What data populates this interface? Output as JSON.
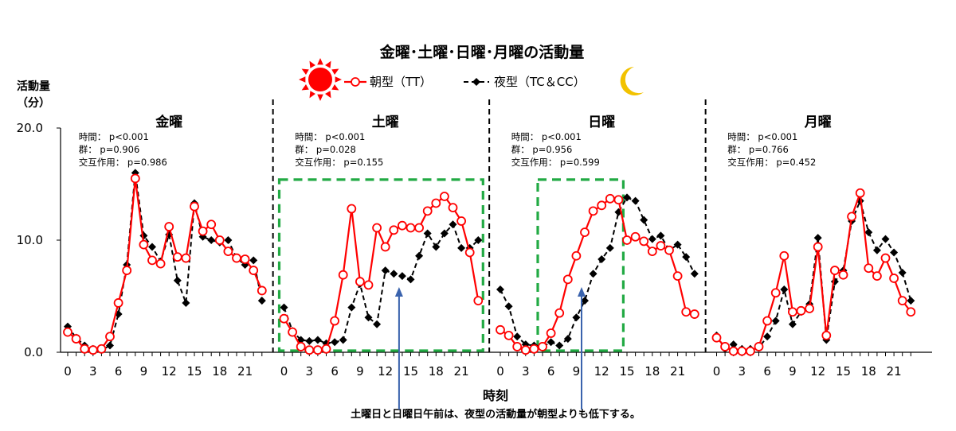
{
  "chart_data": {
    "type": "line",
    "title": "金曜･土曜･日曜･月曜の活動量",
    "ylabel": [
      "活動量",
      "（分）"
    ],
    "xlabel": "時刻",
    "ylim": [
      0,
      20
    ],
    "y_ticks": [
      "0.0",
      "10.0",
      "20.0"
    ],
    "x_ticks": [
      "0",
      "3",
      "6",
      "9",
      "12",
      "15",
      "18",
      "21"
    ],
    "legend": {
      "morning": "朝型（TT）",
      "evening": "夜型（TC＆CC）"
    },
    "colors": {
      "morning": "#ff0000",
      "evening": "#000000",
      "box": "#22aa44",
      "arrow": "#3a63ad",
      "sun": "#ff0000",
      "moon": "#f2c200"
    },
    "icons": [
      "sun-icon",
      "moon-icon"
    ],
    "note": "土曜日と日曜日午前は、夜型の活動量が朝型よりも低下する。",
    "days": [
      {
        "name": "金曜",
        "stats": [
          "時間： p<0.001",
          "群： p=0.906",
          "交互作用： p=0.986"
        ]
      },
      {
        "name": "土曜",
        "stats": [
          "時間： p<0.001",
          "群： p=0.028",
          "交互作用： p=0.155"
        ]
      },
      {
        "name": "日曜",
        "stats": [
          "時間： p<0.001",
          "群： p=0.956",
          "交互作用： p=0.599"
        ]
      },
      {
        "name": "月曜",
        "stats": [
          "時間： p<0.001",
          "群： p=0.766",
          "交互作用： p=0.452"
        ]
      }
    ],
    "series": [
      {
        "name": "朝型（TT）",
        "values": [
          [
            1.8,
            1.2,
            0.3,
            0.2,
            0.3,
            1.4,
            4.4,
            7.3,
            15.5,
            9.6,
            8.2,
            7.9,
            11.2,
            8.5,
            8.4,
            13.0,
            10.8,
            11.4,
            10.0,
            9.0,
            8.4,
            8.3,
            7.3,
            5.5
          ],
          [
            3.0,
            1.8,
            0.5,
            0.2,
            0.2,
            0.3,
            2.8,
            6.9,
            12.8,
            6.3,
            6.0,
            11.1,
            9.4,
            10.9,
            11.3,
            11.1,
            11.1,
            12.6,
            13.3,
            13.9,
            12.9,
            11.7,
            8.9,
            4.6
          ],
          [
            2.0,
            1.5,
            0.5,
            0.2,
            0.3,
            0.5,
            1.7,
            3.5,
            6.5,
            8.6,
            10.7,
            12.6,
            13.1,
            13.7,
            13.6,
            10.0,
            10.3,
            9.9,
            9.0,
            9.5,
            9.1,
            6.8,
            3.6,
            3.4
          ],
          [
            1.3,
            0.5,
            0.1,
            0.1,
            0.1,
            0.5,
            2.8,
            5.3,
            8.6,
            3.6,
            3.7,
            3.9,
            9.4,
            1.5,
            7.3,
            6.9,
            12.1,
            14.2,
            7.5,
            6.8,
            8.4,
            6.6,
            4.6,
            3.6
          ]
        ]
      },
      {
        "name": "夜型（TC＆CC）",
        "values": [
          [
            2.3,
            1.3,
            0.6,
            0.3,
            0.2,
            0.6,
            3.4,
            7.8,
            16.0,
            10.4,
            9.4,
            8.1,
            10.5,
            6.4,
            4.4,
            13.3,
            10.3,
            10.0,
            9.8,
            10.0,
            8.4,
            7.8,
            8.2,
            4.6
          ],
          [
            4.0,
            1.9,
            1.1,
            1.0,
            1.1,
            0.8,
            0.9,
            1.1,
            4.0,
            6.1,
            3.1,
            2.5,
            7.3,
            7.0,
            6.8,
            6.5,
            8.6,
            10.6,
            9.4,
            10.6,
            11.4,
            9.3,
            9.3,
            10.0
          ],
          [
            5.6,
            4.1,
            1.4,
            0.7,
            0.6,
            0.5,
            0.9,
            0.6,
            1.2,
            3.1,
            4.6,
            7.0,
            8.3,
            9.3,
            12.5,
            13.8,
            13.5,
            11.8,
            10.1,
            10.4,
            9.1,
            9.6,
            8.5,
            7.0
          ],
          [
            1.5,
            0.3,
            0.7,
            0.3,
            0.3,
            0.4,
            1.4,
            2.8,
            5.6,
            2.5,
            3.6,
            4.3,
            10.2,
            1.1,
            6.3,
            7.3,
            11.7,
            13.5,
            10.7,
            9.1,
            10.1,
            8.9,
            7.1,
            4.6
          ]
        ]
      }
    ],
    "highlight_boxes": [
      {
        "from_hour": 0,
        "to_hour": 23,
        "ymin": 0,
        "ymax": 15.4,
        "panel": 1
      },
      {
        "from_hour": 5,
        "to_hour": 14,
        "ymin": 0,
        "ymax": 15.4,
        "panel": 2
      }
    ],
    "arrows": [
      {
        "panel": 1,
        "hour": 14
      },
      {
        "panel": 2,
        "hour": 10
      }
    ]
  }
}
